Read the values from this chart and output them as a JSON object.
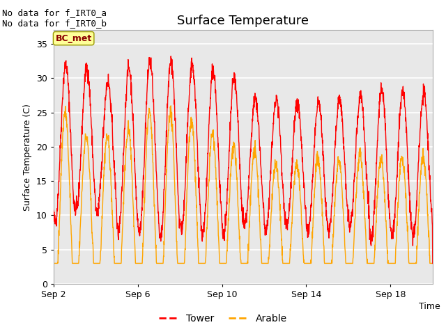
{
  "title": "Surface Temperature",
  "ylabel": "Surface Temperature (C)",
  "xlabel": "Time",
  "ylim": [
    0,
    37
  ],
  "yticks": [
    0,
    5,
    10,
    15,
    20,
    25,
    30,
    35
  ],
  "xtick_labels": [
    "Sep 2",
    "Sep 6",
    "Sep 10",
    "Sep 14",
    "Sep 18"
  ],
  "annotation_text": "No data for f_IRT0_a\nNo data for f_IRT0_b",
  "bc_met_label": "BC_met",
  "legend_entries": [
    "Tower",
    "Arable"
  ],
  "tower_color": "#FF0000",
  "arable_color": "#FFA500",
  "bc_met_text_color": "#8B0000",
  "fig_bg_color": "#FFFFFF",
  "plot_bg_color": "#E8E8E8",
  "grid_color": "#FFFFFF",
  "title_fontsize": 13,
  "label_fontsize": 9,
  "tick_fontsize": 9,
  "annotation_fontsize": 9,
  "line_width": 1.0,
  "n_days": 18,
  "n_points": 1800
}
